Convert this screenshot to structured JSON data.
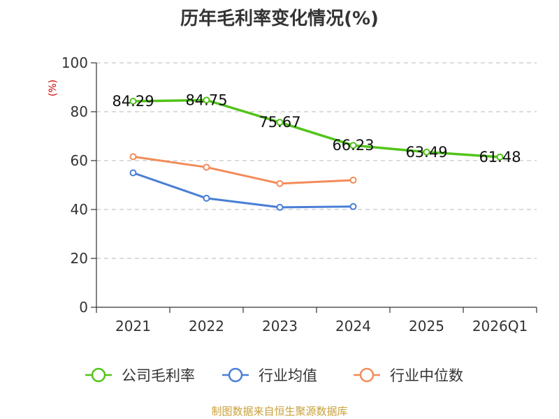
{
  "chart_data": {
    "type": "line",
    "title": "历年毛利率变化情况(%)",
    "ylabel": "(%)",
    "xlabel": "",
    "categories": [
      "2021",
      "2022",
      "2023",
      "2024",
      "2025",
      "2026Q1"
    ],
    "ylim": [
      0,
      100
    ],
    "yticks": [
      0,
      20,
      40,
      60,
      80,
      100
    ],
    "grid": true,
    "legend": "bottom",
    "series": [
      {
        "name": "公司毛利率",
        "color": "#52c41a",
        "values": [
          84.29,
          84.75,
          75.67,
          66.23,
          63.49,
          61.48
        ],
        "labels": [
          "84.29",
          "84.75",
          "75.67",
          "66.23",
          "63.49",
          "61.48"
        ]
      },
      {
        "name": "行业均值",
        "color": "#4a7fd6",
        "values": [
          55.0,
          44.6,
          40.9,
          41.2,
          null,
          null
        ]
      },
      {
        "name": "行业中位数",
        "color": "#f28c5a",
        "values": [
          61.6,
          57.3,
          50.6,
          52.0,
          null,
          null
        ]
      }
    ]
  },
  "source": "制图数据来自恒生聚源数据库"
}
